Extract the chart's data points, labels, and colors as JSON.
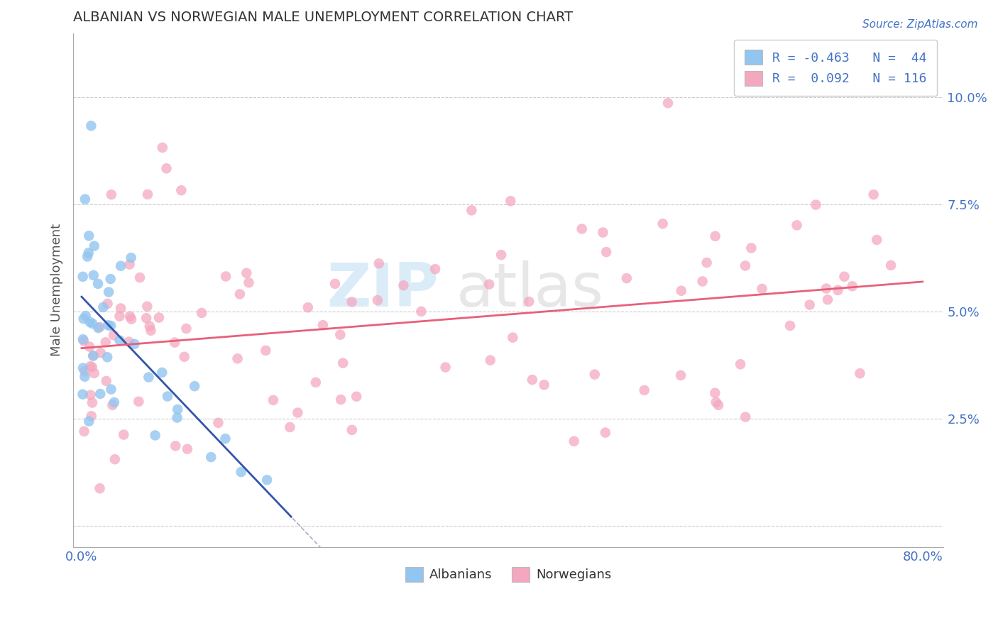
{
  "title": "ALBANIAN VS NORWEGIAN MALE UNEMPLOYMENT CORRELATION CHART",
  "source": "Source: ZipAtlas.com",
  "ylabel": "Male Unemployment",
  "albanian_color": "#92C5F0",
  "norwegian_color": "#F4A8C0",
  "albanian_line_color": "#3355AA",
  "norwegian_line_color": "#E8607A",
  "alb_seed": 77,
  "nor_seed": 42,
  "alb_n": 44,
  "nor_n": 116,
  "watermark_zip_color": "#cce4f7",
  "watermark_atlas_color": "#d8d8d8",
  "legend_box_color_alb": "#92C5F0",
  "legend_box_color_nor": "#F4A8C0",
  "tick_color": "#4472C4",
  "title_color": "#333333",
  "ylabel_color": "#555555",
  "grid_color": "#cccccc"
}
